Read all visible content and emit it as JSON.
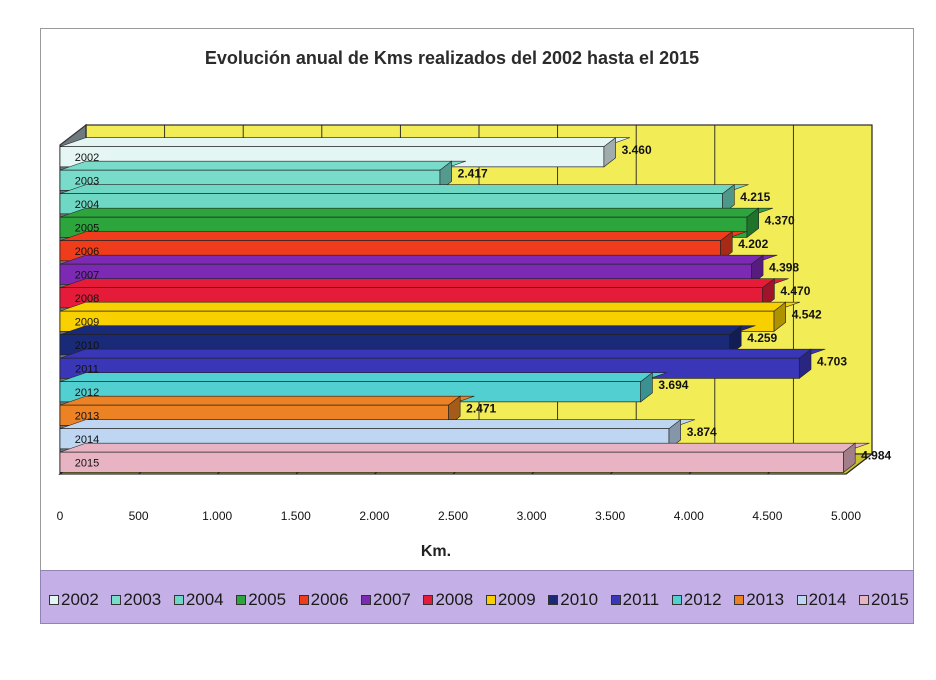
{
  "chart_data": {
    "type": "bar",
    "orientation": "horizontal",
    "title": "Evolución anual de Kms realizados del 2002 hasta el 2015",
    "xlabel": "Km.",
    "ylabel": "",
    "xlim": [
      0,
      5000
    ],
    "x_ticks": [
      "0",
      "500",
      "1.000",
      "1.500",
      "2.000",
      "2.500",
      "3.000",
      "3.500",
      "4.000",
      "4.500",
      "5.000"
    ],
    "grid": true,
    "legend_position": "bottom",
    "categories": [
      "2002",
      "2003",
      "2004",
      "2005",
      "2006",
      "2007",
      "2008",
      "2009",
      "2010",
      "2011",
      "2012",
      "2013",
      "2014",
      "2015"
    ],
    "values": [
      3460,
      2417,
      4215,
      4370,
      4202,
      4398,
      4470,
      4542,
      4259,
      4703,
      3694,
      2471,
      3874,
      4984
    ],
    "value_labels": [
      "3.460",
      "2.417",
      "4.215",
      "4.370",
      "4.202",
      "4.398",
      "4.470",
      "4.542",
      "4.259",
      "4.703",
      "3.694",
      "2.471",
      "3.874",
      "4.984"
    ],
    "colors": [
      "#e4f6f4",
      "#79dccb",
      "#6fd8c4",
      "#2ca63c",
      "#ee3c1c",
      "#7c2ab4",
      "#e41c3a",
      "#f8d000",
      "#1a2a78",
      "#3a36b8",
      "#52cfd0",
      "#ec8224",
      "#bed6f2",
      "#e8b4c4"
    ],
    "wall_color": "#f2ec56",
    "floor_color": "#c8c02e"
  }
}
